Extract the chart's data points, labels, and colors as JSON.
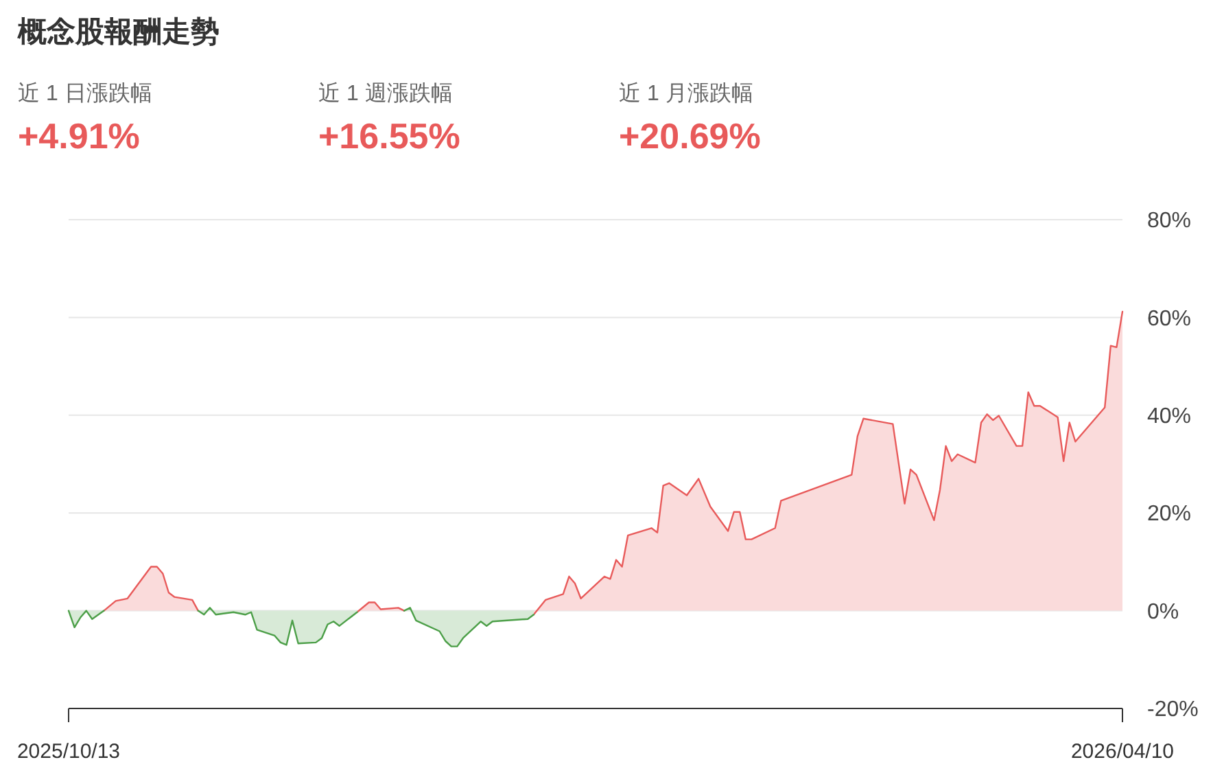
{
  "chart_data": {
    "type": "area",
    "title": "概念股報酬走勢",
    "annotations": [
      "近 1 日漲跌幅",
      "+4.91%",
      "近 1 週漲跌幅",
      "+16.55%",
      "近 1 月漲跌幅",
      "+20.69%"
    ],
    "x": [
      "2025-10-13",
      "2025-10-14",
      "2025-10-15",
      "2025-10-16",
      "2025-10-17",
      "2025-10-19",
      "2025-10-21",
      "2025-10-23",
      "2025-10-27",
      "2025-10-28",
      "2025-10-29",
      "2025-10-30",
      "2025-10-31",
      "2025-11-03",
      "2025-11-04",
      "2025-11-05",
      "2025-11-06",
      "2025-11-07",
      "2025-11-10",
      "2025-11-12",
      "2025-11-13",
      "2025-11-14",
      "2025-11-17",
      "2025-11-18",
      "2025-11-19",
      "2025-11-20",
      "2025-11-21",
      "2025-11-24",
      "2025-11-25",
      "2025-11-26",
      "2025-11-27",
      "2025-11-28",
      "2025-12-01",
      "2025-12-03",
      "2025-12-04",
      "2025-12-05",
      "2025-12-08",
      "2025-12-09",
      "2025-12-10",
      "2025-12-11",
      "2025-12-15",
      "2025-12-16",
      "2025-12-17",
      "2025-12-18",
      "2025-12-19",
      "2025-12-22",
      "2025-12-23",
      "2025-12-24",
      "2025-12-30",
      "2025-12-31",
      "2026-01-02",
      "2026-01-05",
      "2026-01-06",
      "2026-01-07",
      "2026-01-08",
      "2026-01-12",
      "2026-01-13",
      "2026-01-14",
      "2026-01-15",
      "2026-01-16",
      "2026-01-20",
      "2026-01-21",
      "2026-01-22",
      "2026-01-23",
      "2026-01-26",
      "2026-01-28",
      "2026-01-30",
      "2026-02-02",
      "2026-02-03",
      "2026-02-04",
      "2026-02-05",
      "2026-02-06",
      "2026-02-10",
      "2026-02-11",
      "2026-02-23",
      "2026-02-24",
      "2026-02-25",
      "2026-03-02",
      "2026-03-04",
      "2026-03-05",
      "2026-03-06",
      "2026-03-09",
      "2026-03-10",
      "2026-03-11",
      "2026-03-12",
      "2026-03-13",
      "2026-03-16",
      "2026-03-17",
      "2026-03-18",
      "2026-03-19",
      "2026-03-20",
      "2026-03-23",
      "2026-03-24",
      "2026-03-25",
      "2026-03-26",
      "2026-03-27",
      "2026-03-30",
      "2026-03-31",
      "2026-04-01",
      "2026-04-02",
      "2026-04-07",
      "2026-04-08",
      "2026-04-09",
      "2026-04-10"
    ],
    "series": [
      {
        "color": "#e85a5a",
        "values": [
          null,
          null,
          null,
          null,
          null,
          0,
          2.0,
          2.5,
          9.0,
          9.0,
          7.6,
          3.7,
          2.8,
          2.2,
          0,
          null,
          null,
          null,
          null,
          null,
          null,
          null,
          null,
          null,
          null,
          null,
          null,
          null,
          null,
          null,
          null,
          null,
          -0.3,
          1.7,
          1.7,
          0.3,
          0.6,
          0,
          null,
          null,
          null,
          null,
          null,
          null,
          null,
          null,
          null,
          null,
          null,
          -0.8,
          2.2,
          3.4,
          7.0,
          5.6,
          2.5,
          7.0,
          6.5,
          10.4,
          9.0,
          15.4,
          16.9,
          16.0,
          25.6,
          26.1,
          23.6,
          27.0,
          21.3,
          16.3,
          20.2,
          20.2,
          14.6,
          14.6,
          16.9,
          22.5,
          27.8,
          35.7,
          39.3,
          38.2,
          21.9,
          28.9,
          27.8,
          18.5,
          24.7,
          33.7,
          30.6,
          32.0,
          30.3,
          38.5,
          40.2,
          39.0,
          39.9,
          33.7,
          33.7,
          44.7,
          41.9,
          41.9,
          39.6,
          30.6,
          38.5,
          34.6,
          41.6,
          54.2,
          53.9,
          61.2
        ]
      },
      {
        "color": "#4c9f48",
        "values": [
          0,
          -3.4,
          -1.4,
          0,
          -1.7,
          0,
          null,
          null,
          null,
          null,
          null,
          null,
          null,
          null,
          0,
          -0.8,
          0.6,
          -0.8,
          -0.3,
          -0.8,
          -0.3,
          -3.9,
          -5.1,
          -6.5,
          -7.0,
          -2.0,
          -6.7,
          -6.5,
          -5.6,
          -2.8,
          -2.2,
          -3.1,
          -0.3,
          null,
          null,
          null,
          null,
          0,
          0.6,
          -2.0,
          -4.2,
          -6.2,
          -7.3,
          -7.3,
          -5.6,
          -2.2,
          -3.1,
          -2.2,
          -1.7,
          -0.8,
          null,
          null,
          null,
          null,
          null,
          null,
          null,
          null,
          null,
          null,
          null,
          null,
          null,
          null,
          null,
          null,
          null,
          null,
          null,
          null,
          null,
          null,
          null,
          null,
          null,
          null,
          null,
          null,
          null,
          null,
          null,
          null,
          null,
          null,
          null,
          null,
          null,
          null,
          null,
          null,
          null,
          null,
          null,
          null,
          null,
          null,
          null,
          null,
          null,
          null,
          null,
          null,
          null,
          null
        ]
      }
    ],
    "xlim": [
      "2025-10-13",
      "2026-04-10"
    ],
    "xticks": [
      {
        "value": "2025-10-13",
        "label": "2025/10/13"
      },
      {
        "value": "2026-04-10",
        "label": "2026/04/10"
      }
    ],
    "ylim": [
      -20,
      80
    ],
    "yticks": [
      {
        "value": -20,
        "label": "-20%"
      },
      {
        "value": 0,
        "label": "0%"
      },
      {
        "value": 20,
        "label": "20%"
      },
      {
        "value": 40,
        "label": "40%"
      },
      {
        "value": 60,
        "label": "60%"
      },
      {
        "value": 80,
        "label": "80%"
      }
    ],
    "grid": "y"
  }
}
